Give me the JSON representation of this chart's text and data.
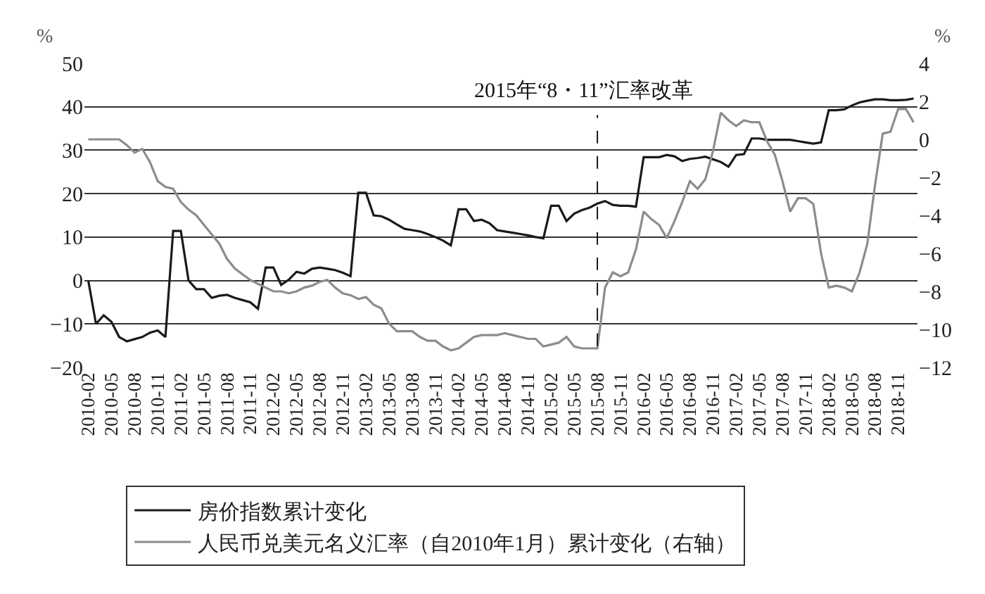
{
  "chart_data": {
    "type": "line",
    "categories": [
      "2010-02",
      null,
      null,
      "2010-05",
      null,
      null,
      "2010-08",
      null,
      null,
      "2010-11",
      null,
      null,
      "2011-02",
      null,
      null,
      "2011-05",
      null,
      null,
      "2011-08",
      null,
      null,
      "2011-11",
      null,
      null,
      "2012-02",
      null,
      null,
      "2012-05",
      null,
      null,
      "2012-08",
      null,
      null,
      "2012-11",
      null,
      null,
      "2013-02",
      null,
      null,
      "2013-05",
      null,
      null,
      "2013-08",
      null,
      null,
      "2013-11",
      null,
      null,
      "2014-02",
      null,
      null,
      "2014-05",
      null,
      null,
      "2014-08",
      null,
      null,
      "2014-11",
      null,
      null,
      "2015-02",
      null,
      null,
      "2015-05",
      null,
      null,
      "2015-08",
      null,
      null,
      "2015-11",
      null,
      null,
      "2016-02",
      null,
      null,
      "2016-05",
      null,
      null,
      "2016-08",
      null,
      null,
      "2016-11",
      null,
      null,
      "2017-02",
      null,
      null,
      "2017-05",
      null,
      null,
      "2017-08",
      null,
      null,
      "2017-11",
      null,
      null,
      "2018-02",
      null,
      null,
      "2018-05",
      null,
      null,
      "2018-08",
      null,
      null,
      "2018-11",
      null,
      null
    ],
    "series": [
      {
        "name": "房价指数累计变化",
        "color": "#1a1a1a",
        "values": [
          0,
          -10,
          -8,
          -9.5,
          -13,
          -14,
          -13.5,
          -13,
          -12,
          -11.5,
          -13,
          11.4,
          11.4,
          0,
          -2,
          -2,
          -4,
          -3.5,
          -3.3,
          -4,
          -4.5,
          -5,
          -6.5,
          3,
          3,
          -1,
          0.2,
          2,
          1.6,
          2.7,
          3,
          2.7,
          2.4,
          1.8,
          1,
          20.2,
          20.2,
          15,
          14.8,
          14,
          12.9,
          11.9,
          11.6,
          11.3,
          10.7,
          10,
          9.2,
          8.1,
          16.4,
          16.4,
          13.7,
          14,
          13.2,
          11.6,
          11.3,
          11,
          10.7,
          10.4,
          10,
          9.7,
          17.2,
          17.2,
          13.7,
          15.4,
          16.2,
          16.8,
          17.7,
          18.3,
          17.4,
          17.2,
          17.2,
          17,
          28.4,
          28.4,
          28.4,
          28.9,
          28.6,
          27.5,
          28,
          28.2,
          28.5,
          27.9,
          27.3,
          26.2,
          28.9,
          29.1,
          32.7,
          32.7,
          32.4,
          32.4,
          32.4,
          32.4,
          32.1,
          31.8,
          31.5,
          31.8,
          39.2,
          39.2,
          39.4,
          40.3,
          41,
          41.4,
          41.7,
          41.7,
          41.5,
          41.5,
          41.6,
          41.9
        ]
      },
      {
        "name": "人民币兑美元名义汇率（自2010年1月）累计变化（右轴）",
        "color": "#8c8c8c",
        "axis": "y2",
        "values": [
          0,
          0,
          0,
          0,
          0,
          -0.3,
          -0.7,
          -0.5,
          -1.2,
          -2.2,
          -2.5,
          -2.6,
          -3.3,
          -3.7,
          -4,
          -4.5,
          -5,
          -5.5,
          -6.3,
          -6.8,
          -7.1,
          -7.4,
          -7.6,
          -7.8,
          -8,
          -8,
          -8.1,
          -8,
          -7.8,
          -7.7,
          -7.5,
          -7.4,
          -7.8,
          -8.1,
          -8.2,
          -8.4,
          -8.3,
          -8.7,
          -8.9,
          -9.7,
          -10.1,
          -10.1,
          -10.1,
          -10.4,
          -10.6,
          -10.6,
          -10.9,
          -11.1,
          -11,
          -10.7,
          -10.4,
          -10.3,
          -10.3,
          -10.3,
          -10.2,
          -10.3,
          -10.4,
          -10.5,
          -10.5,
          -10.9,
          -10.8,
          -10.7,
          -10.4,
          -10.9,
          -11,
          -11,
          -11,
          -7.8,
          -7,
          -7.2,
          -7,
          -5.8,
          -3.8,
          -4.2,
          -4.5,
          -5.2,
          -4.3,
          -3.3,
          -2.2,
          -2.6,
          -2.1,
          -0.6,
          1.4,
          1,
          0.7,
          1,
          0.9,
          0.9,
          -0.1,
          -0.8,
          -2.2,
          -3.8,
          -3.1,
          -3.1,
          -3.4,
          -6,
          -7.8,
          -7.7,
          -7.8,
          -8,
          -7,
          -5.5,
          -2.4,
          0.3,
          0.4,
          1.6,
          1.6,
          0.9
        ]
      }
    ],
    "ylabel": "%",
    "y2label": "%",
    "ylim": [
      -20,
      50
    ],
    "yticks": [
      -20,
      -10,
      0,
      10,
      20,
      30,
      40,
      50
    ],
    "y2lim": [
      -12,
      4
    ],
    "y2ticks": [
      -12,
      -10,
      -8,
      -6,
      -4,
      -2,
      0,
      2,
      4
    ],
    "ref_lines": [
      {
        "axis": "x",
        "value": "2015-08",
        "label": "2015年“8・11”汇率改革",
        "line_style": "dashed",
        "color": "#1a1a1a"
      }
    ],
    "grid": "y",
    "legend": "bottom",
    "line_style": "solid",
    "marker": "none"
  }
}
